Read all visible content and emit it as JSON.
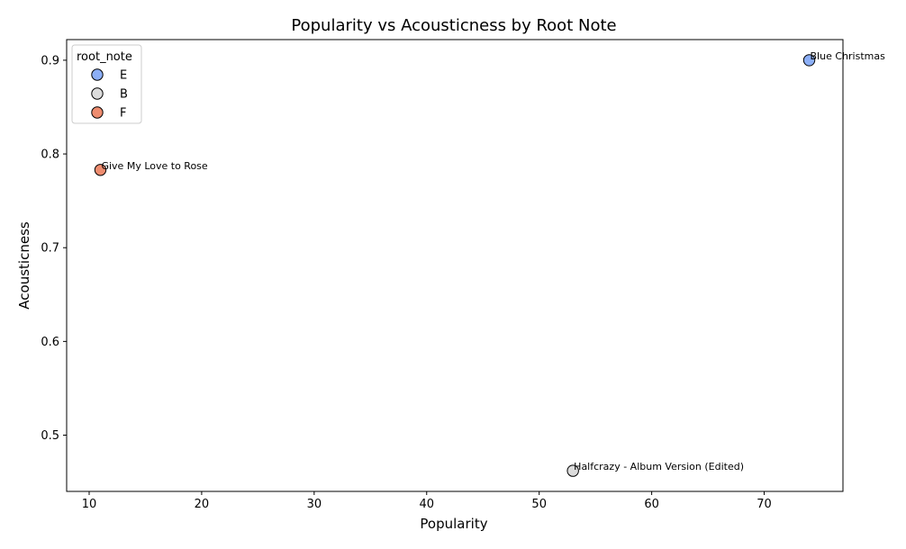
{
  "chart_data": {
    "type": "scatter",
    "title": "Popularity vs Acousticness by Root Note",
    "xlabel": "Popularity",
    "ylabel": "Acousticness",
    "xlim": [
      8,
      77
    ],
    "ylim": [
      0.44,
      0.922
    ],
    "xticks": [
      10,
      20,
      30,
      40,
      50,
      60,
      70
    ],
    "yticks": [
      0.5,
      0.6,
      0.7,
      0.8,
      0.9
    ],
    "grid": false,
    "legend": {
      "title": "root_note",
      "placement": "top-left",
      "entries": [
        {
          "label": "E",
          "color": "#8caff7"
        },
        {
          "label": "B",
          "color": "#dcdcdc"
        },
        {
          "label": "F",
          "color": "#ee8c6f"
        }
      ]
    },
    "points": [
      {
        "x": 74,
        "y": 0.9,
        "root_note": "E",
        "label": "Blue Christmas"
      },
      {
        "x": 53,
        "y": 0.462,
        "root_note": "B",
        "label": "Halfcrazy - Album Version (Edited)"
      },
      {
        "x": 11,
        "y": 0.783,
        "root_note": "F",
        "label": "Give My Love to Rose"
      }
    ]
  }
}
